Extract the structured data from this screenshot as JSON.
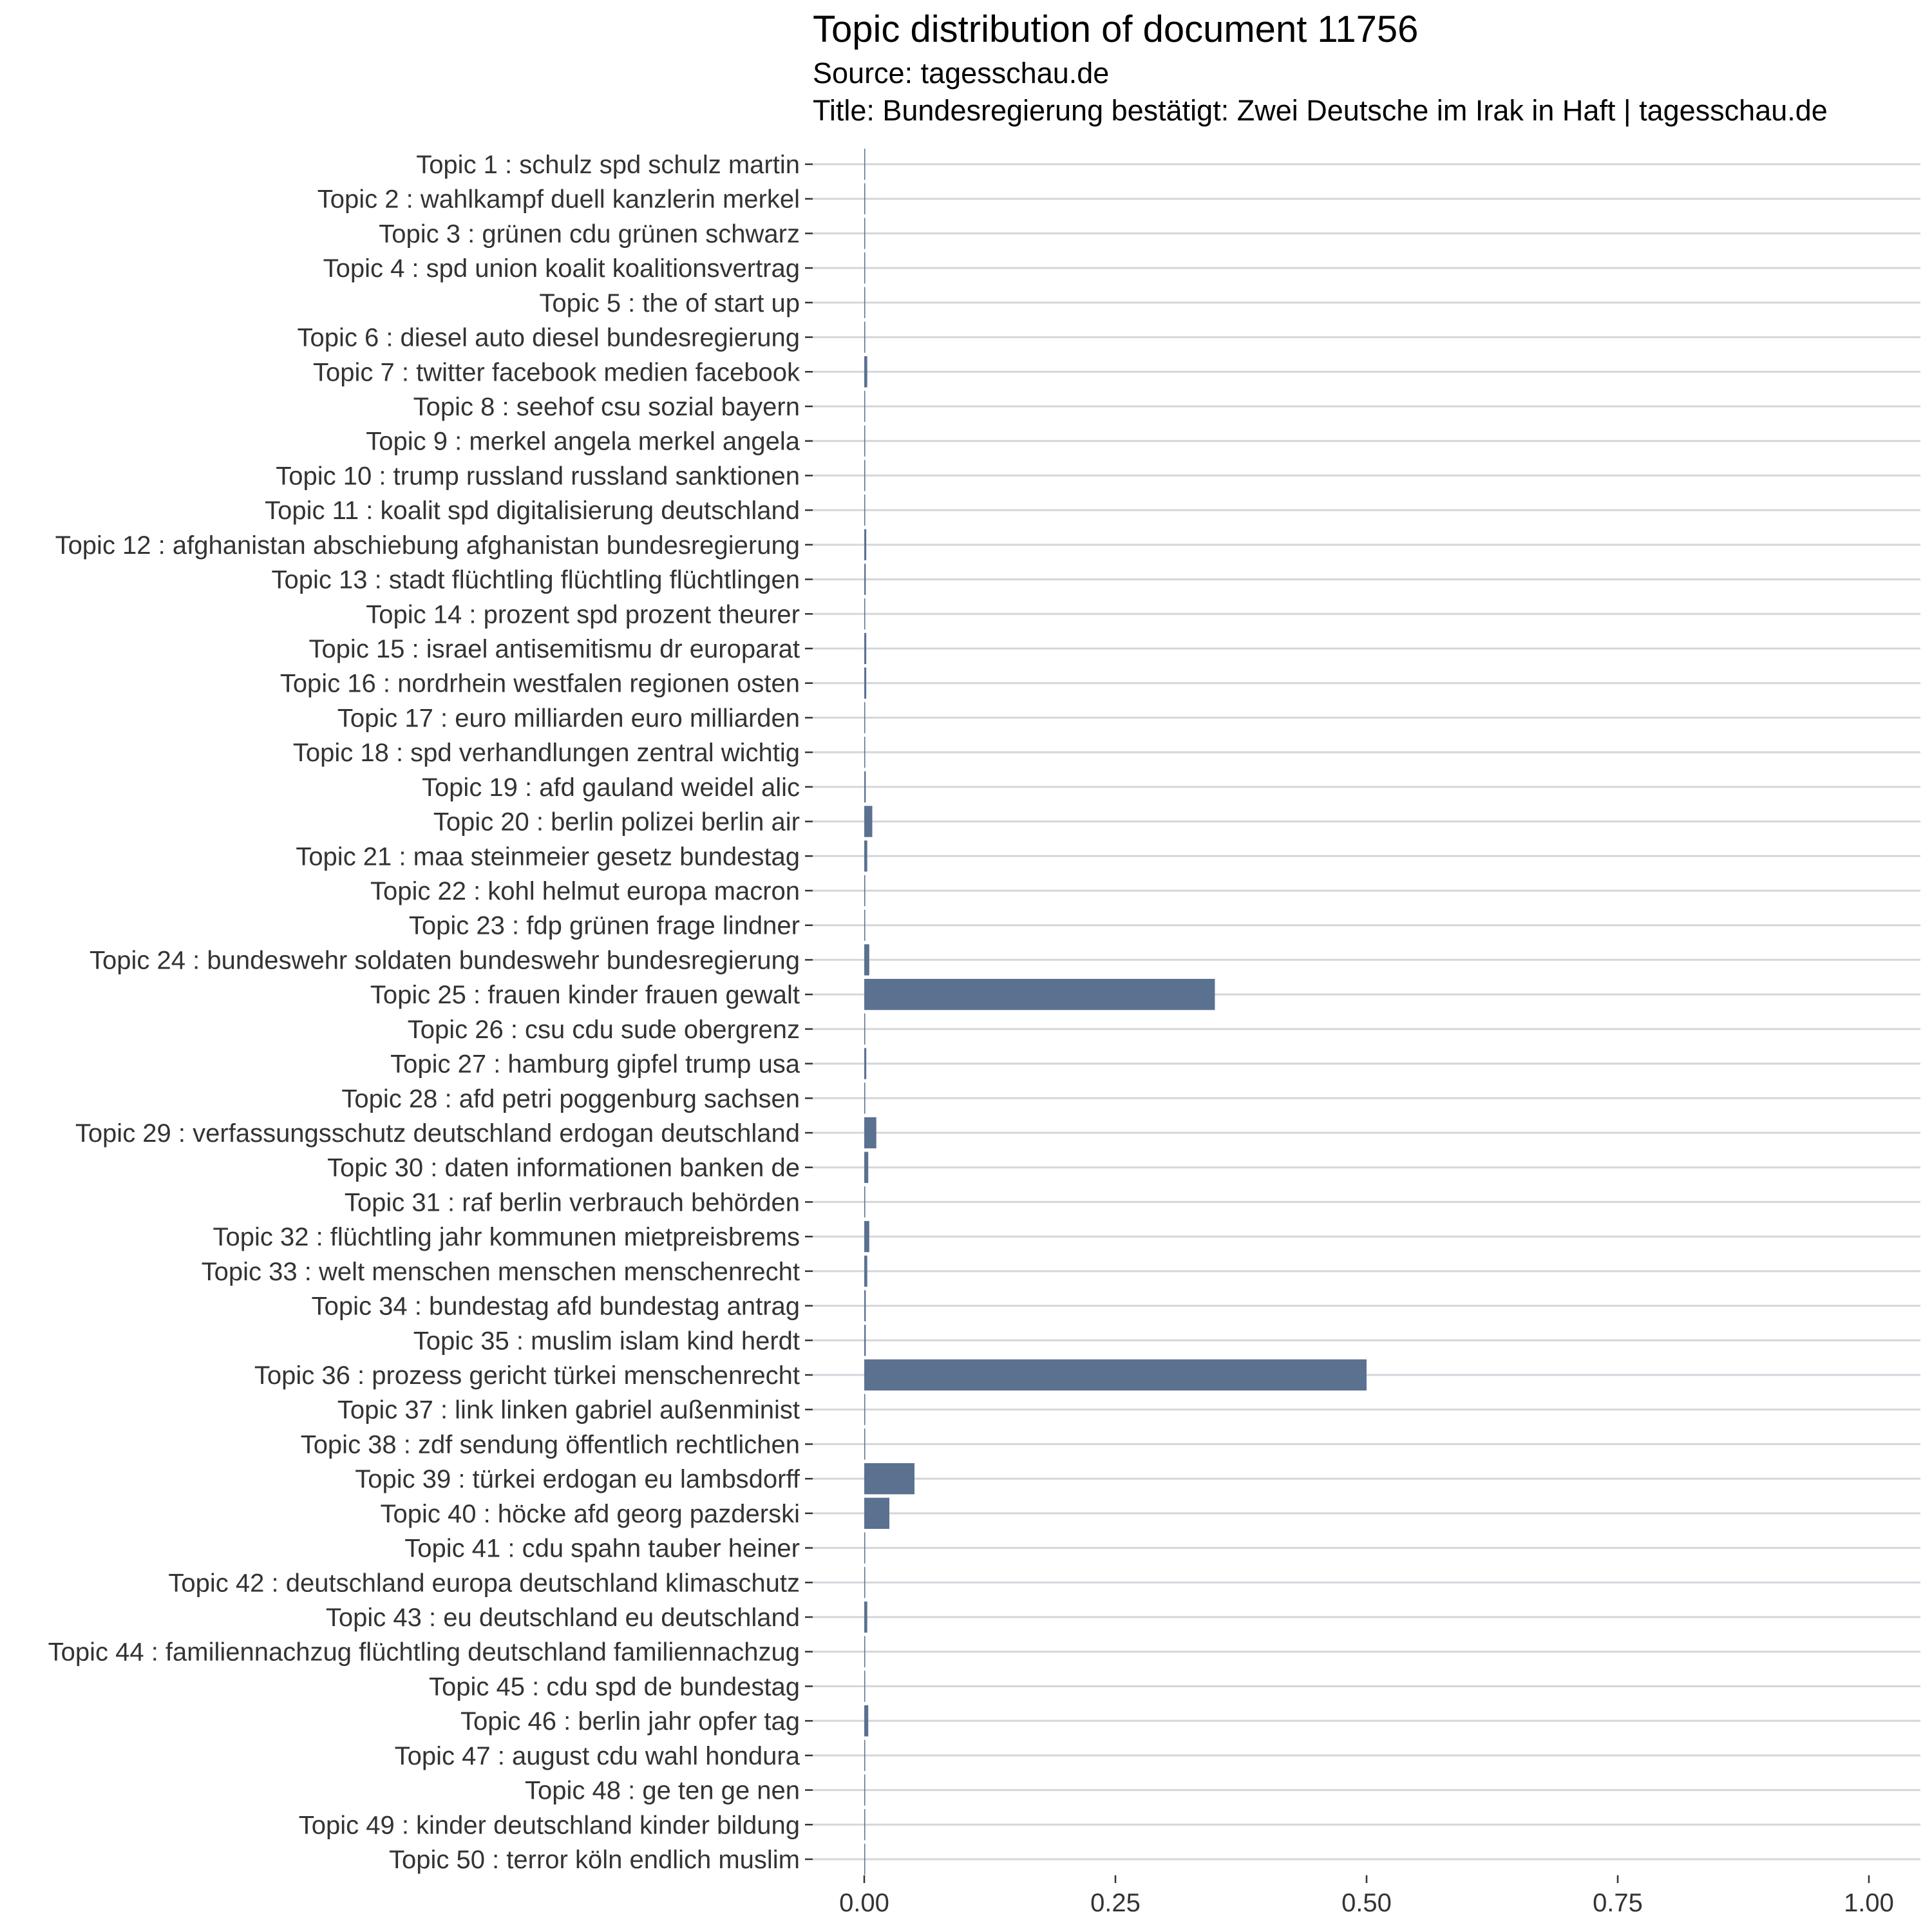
{
  "title": "Topic distribution of document 11756",
  "subtitle_source": "Source: tagesschau.de",
  "subtitle_title": "Title: Bundesregierung bestätigt: Zwei Deutsche im Irak in Haft | tagesschau.de",
  "colors": {
    "bar": "#5a7190",
    "gridline": "#d3d6db",
    "tick": "#333333"
  },
  "chart_data": {
    "type": "bar",
    "orientation": "horizontal",
    "title": "Topic distribution of document 11756",
    "xlabel": "",
    "ylabel": "",
    "xlim": [
      0,
      1
    ],
    "x_ticks": [
      0,
      0.25,
      0.5,
      0.75,
      1
    ],
    "x_tick_labels": [
      "0.00",
      "0.25",
      "0.50",
      "0.75",
      "1.00"
    ],
    "grid": "horizontal major lines",
    "categories": [
      "Topic 1 : schulz spd schulz martin",
      "Topic 2 : wahlkampf duell kanzlerin merkel",
      "Topic 3 : grünen cdu grünen schwarz",
      "Topic 4 : spd union koalit koalitionsvertrag",
      "Topic 5 : the of start up",
      "Topic 6 : diesel auto diesel bundesregierung",
      "Topic 7 : twitter facebook medien facebook",
      "Topic 8 : seehof csu sozial bayern",
      "Topic 9 : merkel angela merkel angela",
      "Topic 10 : trump russland russland sanktionen",
      "Topic 11 : koalit spd digitalisierung deutschland",
      "Topic 12 : afghanistan abschiebung afghanistan bundesregierung",
      "Topic 13 : stadt flüchtling flüchtling flüchtlingen",
      "Topic 14 : prozent spd prozent theurer",
      "Topic 15 : israel antisemitismu dr europarat",
      "Topic 16 : nordrhein westfalen regionen osten",
      "Topic 17 : euro milliarden euro milliarden",
      "Topic 18 : spd verhandlungen zentral wichtig",
      "Topic 19 : afd gauland weidel alic",
      "Topic 20 : berlin polizei berlin air",
      "Topic 21 : maa steinmeier gesetz bundestag",
      "Topic 22 : kohl helmut europa macron",
      "Topic 23 : fdp grünen frage lindner",
      "Topic 24 : bundeswehr soldaten bundeswehr bundesregierung",
      "Topic 25 : frauen kinder frauen gewalt",
      "Topic 26 : csu cdu sude obergrenz",
      "Topic 27 : hamburg gipfel trump usa",
      "Topic 28 : afd petri poggenburg sachsen",
      "Topic 29 : verfassungsschutz deutschland erdogan deutschland",
      "Topic 30 : daten informationen banken de",
      "Topic 31 : raf berlin verbrauch behörden",
      "Topic 32 : flüchtling jahr kommunen mietpreisbrems",
      "Topic 33 : welt menschen menschen menschenrecht",
      "Topic 34 : bundestag afd bundestag antrag",
      "Topic 35 : muslim islam kind herdt",
      "Topic 36 : prozess gericht türkei menschenrecht",
      "Topic 37 : link linken gabriel außenminist",
      "Topic 38 : zdf sendung öffentlich rechtlichen",
      "Topic 39 : türkei erdogan eu lambsdorff",
      "Topic 40 : höcke afd georg pazderski",
      "Topic 41 : cdu spahn tauber heiner",
      "Topic 42 : deutschland europa deutschland klimaschutz",
      "Topic 43 : eu deutschland eu deutschland",
      "Topic 44 : familiennachzug flüchtling deutschland familiennachzug",
      "Topic 45 : cdu spd de bundestag",
      "Topic 46 : berlin jahr opfer tag",
      "Topic 47 : august cdu wahl hondura",
      "Topic 48 : ge ten ge nen",
      "Topic 49 : kinder deutschland kinder bildung",
      "Topic 50 : terror köln endlich muslim"
    ],
    "values": [
      0.0008,
      0.001,
      0.0002,
      0.0002,
      0.0002,
      0.001,
      0.003,
      0.0002,
      0.0008,
      0.001,
      0.0002,
      0.002,
      0.0015,
      0.0002,
      0.002,
      0.002,
      0.0008,
      0.0002,
      0.0015,
      0.008,
      0.003,
      0.001,
      0.0002,
      0.005,
      0.349,
      0.0002,
      0.002,
      0.001,
      0.012,
      0.004,
      0.001,
      0.005,
      0.003,
      0.0015,
      0.0015,
      0.5,
      0.0008,
      0.0008,
      0.05,
      0.025,
      0.0002,
      0.0002,
      0.003,
      0.0008,
      0.0008,
      0.004,
      0.0002,
      0.0002,
      0.0008,
      0.0008
    ]
  }
}
